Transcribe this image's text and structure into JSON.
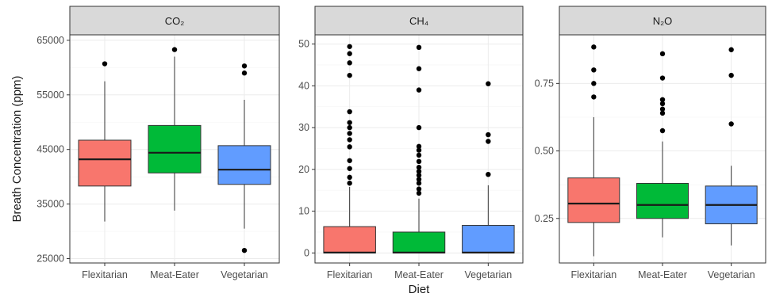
{
  "chart_data": {
    "type": "boxplot",
    "xlabel": "Diet",
    "ylabel": "Breath Concentration (ppm)",
    "categories": [
      "Flexitarian",
      "Meat-Eater",
      "Vegetarian"
    ],
    "colors": {
      "Flexitarian": "#f8766d",
      "Meat-Eater": "#00ba38",
      "Vegetarian": "#619cff"
    },
    "grid": true,
    "panels": [
      {
        "name": "co2",
        "title": "CO₂",
        "ylim": [
          24200,
          66000
        ],
        "yticks": [
          25000,
          35000,
          45000,
          55000,
          65000
        ],
        "tick_labels": [
          "25000",
          "35000",
          "45000",
          "55000",
          "65000"
        ],
        "boxes": [
          {
            "category": "Flexitarian",
            "whisker_low": 31800,
            "q1": 38300,
            "median": 43200,
            "q3": 46700,
            "whisker_high": 57500,
            "outliers": [
              60700
            ]
          },
          {
            "category": "Meat-Eater",
            "whisker_low": 33800,
            "q1": 40700,
            "median": 44400,
            "q3": 49400,
            "whisker_high": 62000,
            "outliers": [
              63300
            ]
          },
          {
            "category": "Vegetarian",
            "whisker_low": 30500,
            "q1": 38600,
            "median": 41300,
            "q3": 45700,
            "whisker_high": 54100,
            "outliers": [
              26500,
              59000,
              60300
            ]
          }
        ]
      },
      {
        "name": "ch4",
        "title": "CH₄",
        "ylim": [
          -2.4,
          52.2
        ],
        "yticks": [
          0,
          10,
          20,
          30,
          40,
          50
        ],
        "tick_labels": [
          "0",
          "10",
          "20",
          "30",
          "40",
          "50"
        ],
        "boxes": [
          {
            "category": "Flexitarian",
            "whisker_low": 0,
            "q1": 0,
            "median": 0.1,
            "q3": 6.3,
            "whisker_high": 15.8,
            "outliers": [
              16.7,
              18.1,
              20.2,
              22.1,
              25.4,
              27.1,
              28.6,
              30.0,
              31.2,
              33.8,
              42.5,
              45.5,
              47.7,
              49.4
            ]
          },
          {
            "category": "Meat-Eater",
            "whisker_low": 0,
            "q1": 0,
            "median": 0.1,
            "q3": 5.0,
            "whisker_high": 13.0,
            "outliers": [
              14.3,
              15.3,
              16.7,
              17.6,
              18.6,
              19.5,
              20.5,
              21.9,
              23.4,
              24.6,
              25.5,
              30.0,
              39.0,
              44.1,
              49.2
            ]
          },
          {
            "category": "Vegetarian",
            "whisker_low": 0,
            "q1": 0,
            "median": 0.1,
            "q3": 6.6,
            "whisker_high": 16.2,
            "outliers": [
              18.8,
              26.7,
              28.3,
              40.5
            ]
          }
        ]
      },
      {
        "name": "n2o",
        "title": "N₂O",
        "ylim": [
          0.085,
          0.93
        ],
        "yticks": [
          0.25,
          0.5,
          0.75
        ],
        "tick_labels": [
          "0.25",
          "0.50",
          "0.75"
        ],
        "boxes": [
          {
            "category": "Flexitarian",
            "whisker_low": 0.11,
            "q1": 0.235,
            "median": 0.305,
            "q3": 0.4,
            "whisker_high": 0.625,
            "outliers": [
              0.7,
              0.75,
              0.8,
              0.885
            ]
          },
          {
            "category": "Meat-Eater",
            "whisker_low": 0.18,
            "q1": 0.25,
            "median": 0.3,
            "q3": 0.38,
            "whisker_high": 0.535,
            "outliers": [
              0.575,
              0.64,
              0.655,
              0.675,
              0.69,
              0.77,
              0.86
            ]
          },
          {
            "category": "Vegetarian",
            "whisker_low": 0.15,
            "q1": 0.23,
            "median": 0.3,
            "q3": 0.37,
            "whisker_high": 0.445,
            "outliers": [
              0.6,
              0.78,
              0.875
            ]
          }
        ]
      }
    ]
  }
}
